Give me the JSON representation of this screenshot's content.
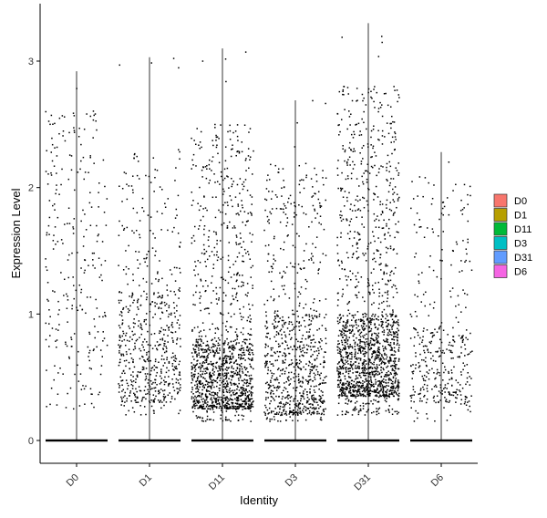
{
  "chart_data": {
    "type": "violin",
    "title": "",
    "xlabel": "Identity",
    "ylabel": "Expression Level",
    "categories": [
      "D0",
      "D1",
      "D11",
      "D3",
      "D31",
      "D6"
    ],
    "ylim": [
      -0.18,
      3.35
    ],
    "yticks": [
      0,
      1,
      2,
      3
    ],
    "grid": false,
    "legend": {
      "position": "right",
      "entries": [
        "D0",
        "D1",
        "D11",
        "D3",
        "D31",
        "D6"
      ]
    },
    "colors": {
      "D0": "#F8766D",
      "D1": "#B79F00",
      "D11": "#00BA38",
      "D3": "#00BFC4",
      "D31": "#619CFF",
      "D6": "#F564E3"
    },
    "series": [
      {
        "name": "D0",
        "max": 2.92,
        "nonzero_points": 260,
        "nonzero_min": 0.25,
        "nonzero_spread": [
          0.25,
          2.6
        ],
        "dense_band": null
      },
      {
        "name": "D1",
        "max": 3.03,
        "nonzero_points": 620,
        "nonzero_min": 0.2,
        "nonzero_spread": [
          0.2,
          2.3
        ],
        "dense_band": [
          0.3,
          1.2
        ]
      },
      {
        "name": "D11",
        "max": 3.1,
        "nonzero_points": 1350,
        "nonzero_min": 0.15,
        "nonzero_spread": [
          0.15,
          2.5
        ],
        "dense_band": [
          0.25,
          0.8
        ]
      },
      {
        "name": "D3",
        "max": 2.69,
        "nonzero_points": 850,
        "nonzero_min": 0.15,
        "nonzero_spread": [
          0.15,
          2.2
        ],
        "dense_band": [
          0.2,
          1.0
        ]
      },
      {
        "name": "D31",
        "max": 3.3,
        "nonzero_points": 1650,
        "nonzero_min": 0.2,
        "nonzero_spread": [
          0.2,
          2.8
        ],
        "dense_band": [
          0.35,
          1.0
        ]
      },
      {
        "name": "D6",
        "max": 2.28,
        "nonzero_points": 380,
        "nonzero_min": 0.15,
        "nonzero_spread": [
          0.15,
          2.1
        ],
        "dense_band": [
          0.3,
          0.9
        ]
      }
    ],
    "zero_mass": true
  }
}
